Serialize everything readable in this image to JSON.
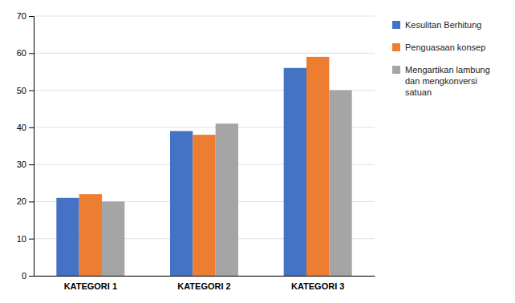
{
  "chart_data": {
    "type": "bar",
    "categories": [
      "KATEGORI 1",
      "KATEGORI 2",
      "KATEGORI 3"
    ],
    "series": [
      {
        "name": "Kesulitan Berhitung",
        "color": "#4472C4",
        "values": [
          21,
          39,
          56
        ]
      },
      {
        "name": "Penguasaan konsep",
        "color": "#ED7D31",
        "values": [
          22,
          38,
          59
        ]
      },
      {
        "name": "Mengartikan lambung\ndan mengkonversi\nsatuan",
        "color": "#A5A5A5",
        "values": [
          20,
          41,
          50
        ]
      }
    ],
    "ylim": [
      0,
      70
    ],
    "yticks": [
      0,
      10,
      20,
      30,
      40,
      50,
      60,
      70
    ],
    "grid": true,
    "legend": "right"
  }
}
